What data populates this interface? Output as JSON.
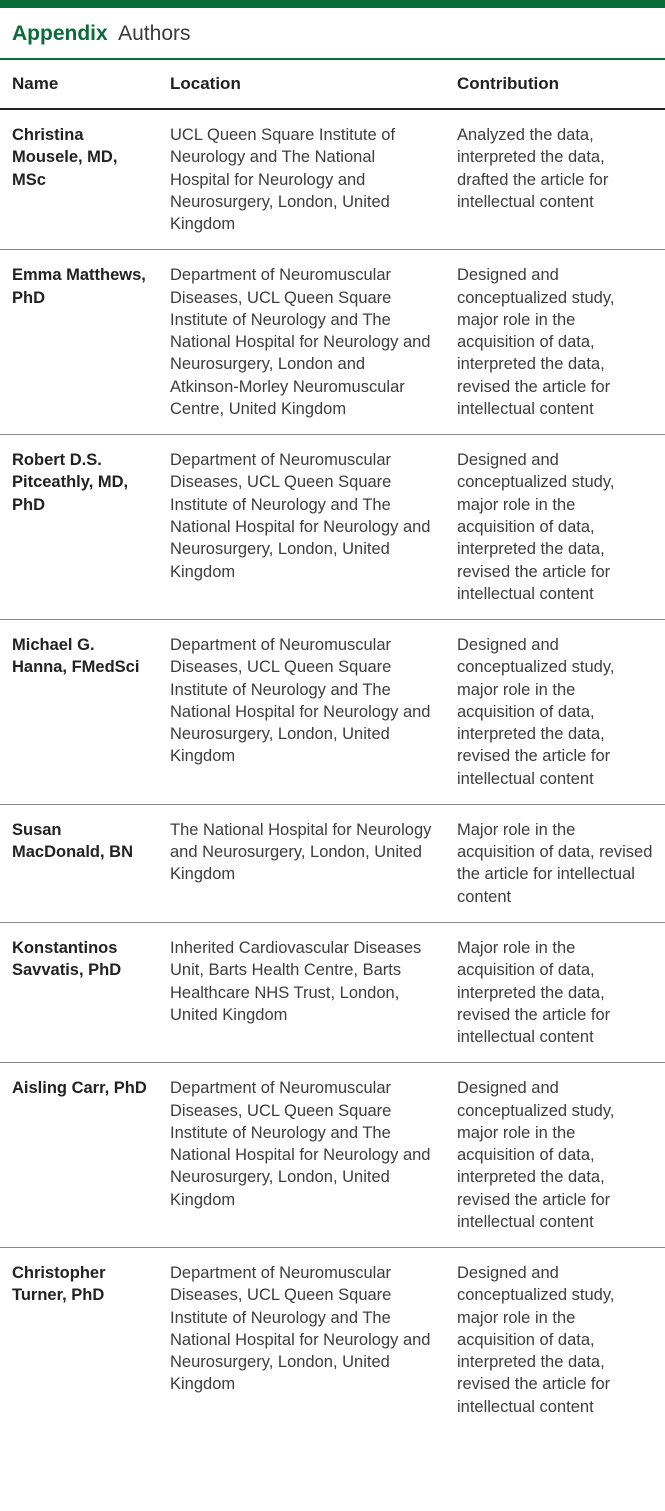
{
  "appendix": {
    "label": "Appendix",
    "subtitle": "Authors",
    "title_color": "#0b6b3a",
    "top_bar_color": "#0b6b3a",
    "columns": {
      "name": "Name",
      "location": "Location",
      "contribution": "Contribution"
    },
    "rows": [
      {
        "name": "Christina Mousele, MD, MSc",
        "location": "UCL Queen Square Institute of Neurology and The National Hospital for Neurology and Neurosurgery, London, United Kingdom",
        "contribution": "Analyzed the data, interpreted the data, drafted the article for intellectual content"
      },
      {
        "name": "Emma Matthews, PhD",
        "location": "Department of Neuromuscular Diseases, UCL Queen Square Institute of Neurology and The National Hospital for Neurology and Neurosurgery, London and Atkinson-Morley Neuromuscular Centre, United Kingdom",
        "contribution": "Designed and conceptualized study, major role in the acquisition of data, interpreted the data, revised the article for intellectual content"
      },
      {
        "name": "Robert D.S. Pitceathly, MD, PhD",
        "location": "Department of Neuromuscular Diseases, UCL Queen Square Institute of Neurology and The National Hospital for Neurology and Neurosurgery, London, United Kingdom",
        "contribution": "Designed and conceptualized study, major role in the acquisition of data, interpreted the data, revised the article for intellectual content"
      },
      {
        "name": "Michael G. Hanna, FMedSci",
        "location": "Department of Neuromuscular Diseases, UCL Queen Square Institute of Neurology and The National Hospital for Neurology and Neurosurgery, London, United Kingdom",
        "contribution": "Designed and conceptualized study, major role in the acquisition of data, interpreted the data, revised the article for intellectual content"
      },
      {
        "name": "Susan MacDonald, BN",
        "location": "The National Hospital for Neurology and Neurosurgery, London, United Kingdom",
        "contribution": "Major role in the acquisition of data, revised the article for intellectual content"
      },
      {
        "name": "Konstantinos Savvatis, PhD",
        "location": "Inherited Cardiovascular Diseases Unit, Barts Health Centre, Barts Healthcare NHS Trust, London, United Kingdom",
        "contribution": "Major role in the acquisition of data, interpreted the data, revised the article for intellectual content"
      },
      {
        "name": "Aisling Carr, PhD",
        "location": "Department of Neuromuscular Diseases, UCL Queen Square Institute of Neurology and The National Hospital for Neurology and Neurosurgery, London, United Kingdom",
        "contribution": "Designed and conceptualized study, major role in the acquisition of data, interpreted the data, revised the article for intellectual content"
      },
      {
        "name": "Christopher Turner, PhD",
        "location": "Department of Neuromuscular Diseases, UCL Queen Square Institute of Neurology and The National Hospital for Neurology and Neurosurgery, London, United Kingdom",
        "contribution": "Designed and conceptualized study, major role in the acquisition of data, interpreted the data, revised the article for intellectual content"
      }
    ]
  }
}
